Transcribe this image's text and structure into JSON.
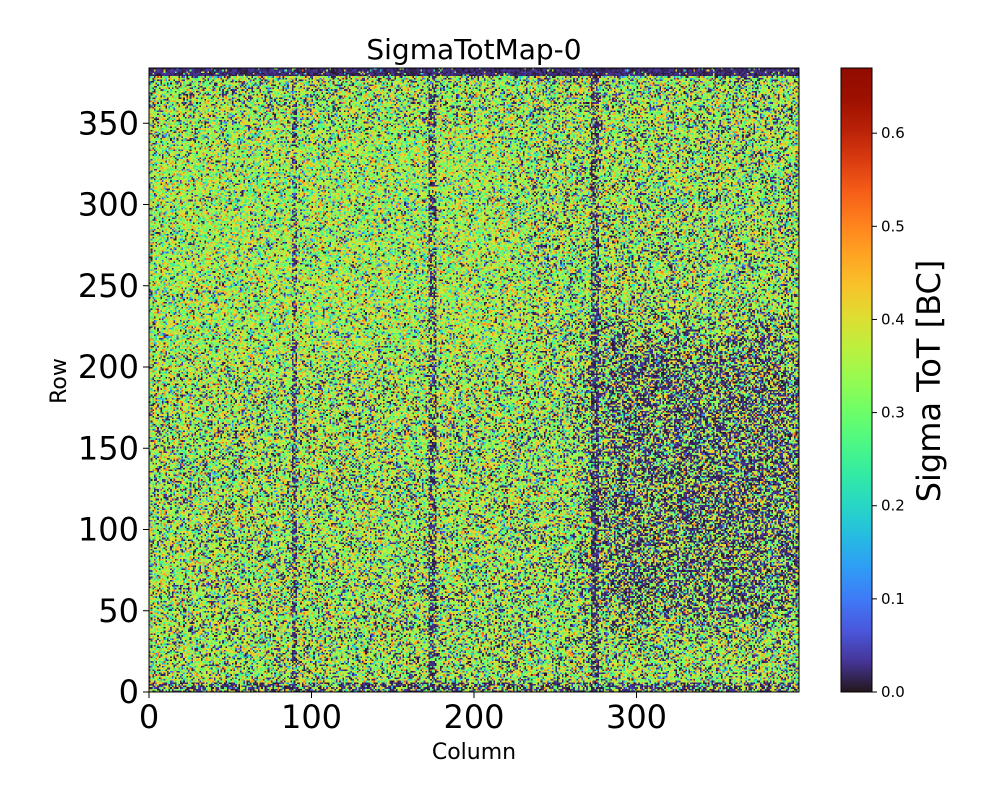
{
  "chart_data": {
    "type": "heatmap",
    "title": "SigmaTotMap-0",
    "xlabel": "Column",
    "ylabel": "Row",
    "colorbar_label": "Sigma ToT [BC]",
    "colormap": "turbo",
    "xlim": [
      0,
      400
    ],
    "ylim": [
      0,
      384
    ],
    "clim": [
      0.0,
      0.67
    ],
    "x_ticks": [
      0,
      100,
      200,
      300
    ],
    "x_tick_labels": [
      "0",
      "100",
      "200",
      "300"
    ],
    "y_ticks": [
      0,
      50,
      100,
      150,
      200,
      250,
      300,
      350
    ],
    "y_tick_labels": [
      "0",
      "50",
      "100",
      "150",
      "200",
      "250",
      "300",
      "350"
    ],
    "colorbar_ticks": [
      0.0,
      0.1,
      0.2,
      0.3,
      0.4,
      0.5,
      0.6
    ],
    "colorbar_tick_labels": [
      "0.0",
      "0.1",
      "0.2",
      "0.3",
      "0.4",
      "0.5",
      "0.6"
    ],
    "n_columns": 400,
    "n_rows": 384,
    "grid": false,
    "features": {
      "dead_top_rows": [
        379,
        384
      ],
      "dead_bottom_rows": [
        0,
        5
      ],
      "low_sigma_column_stripes": [
        88,
        90,
        172,
        176,
        272,
        276
      ],
      "low_sigma_region": {
        "columns": [
          255,
          400
        ],
        "rows": [
          20,
          240
        ]
      },
      "high_sigma_region": {
        "columns": [
          0,
          250
        ],
        "rows": [
          180,
          370
        ]
      }
    },
    "colors": {
      "background": "#ffffff",
      "axis": "#000000",
      "dead_pixel": "#30123b"
    }
  }
}
